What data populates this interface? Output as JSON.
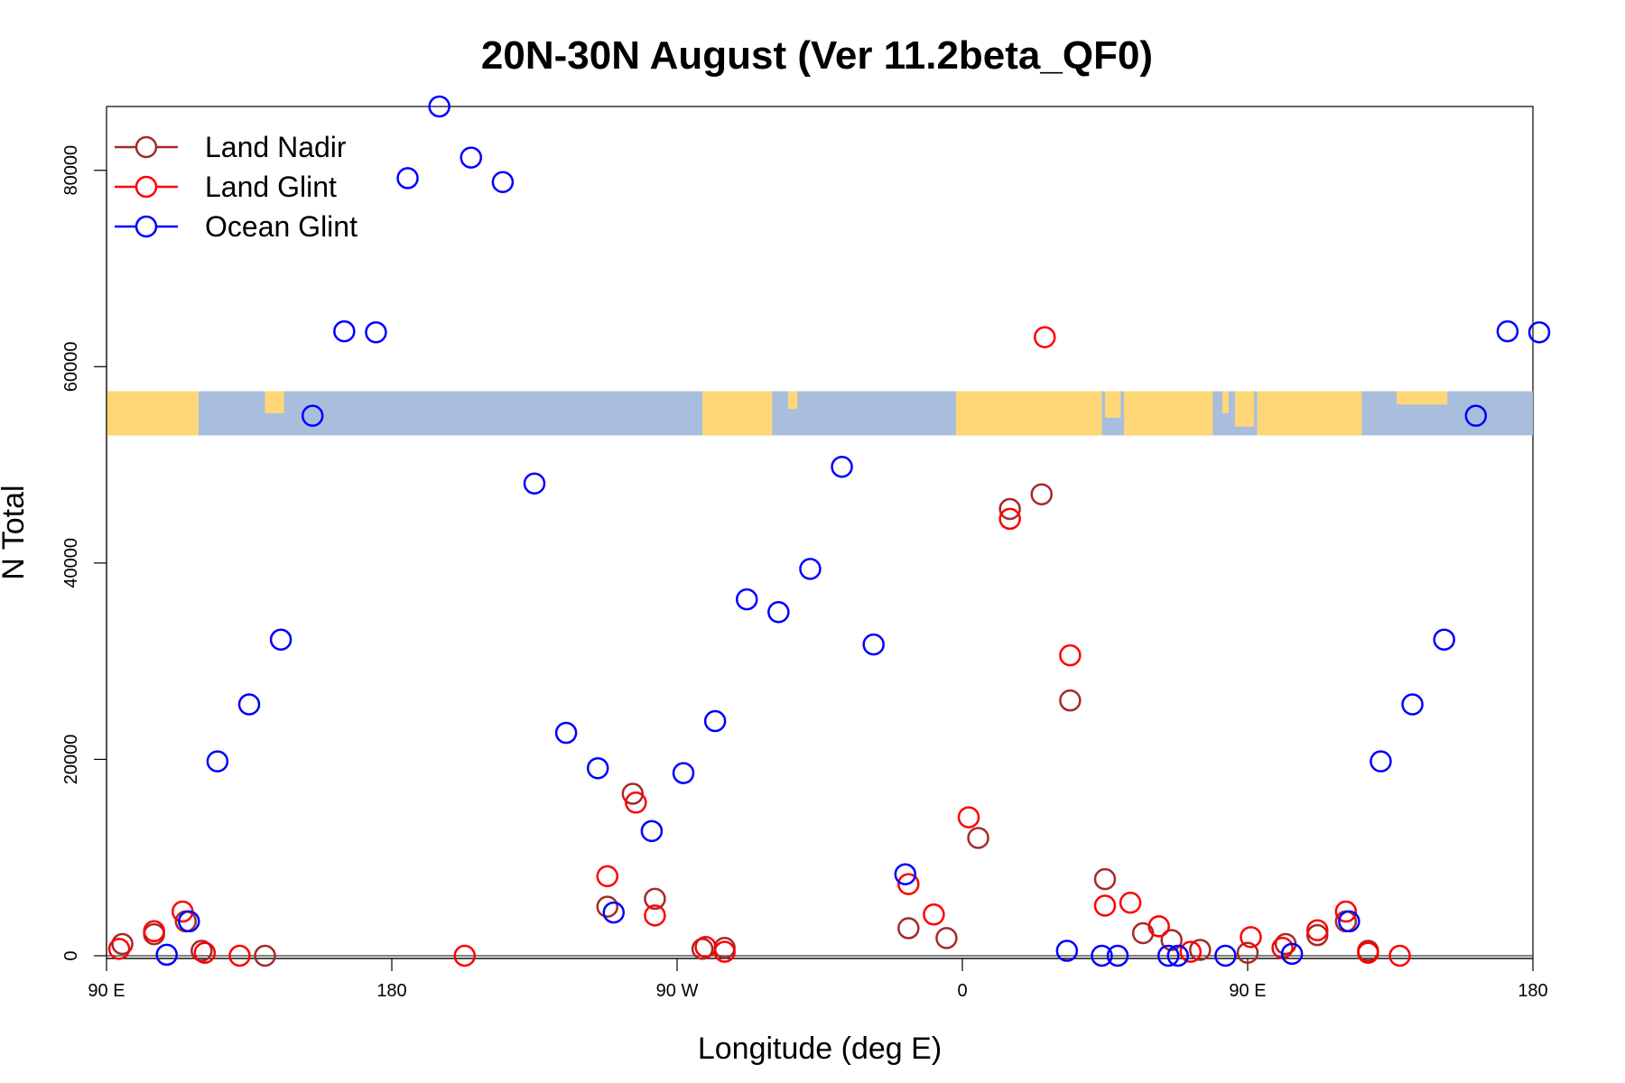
{
  "chart_data": {
    "type": "scatter",
    "title": "20N-30N August (Ver 11.2beta_QF0)",
    "xlabel": "Longitude (deg E)",
    "ylabel": "N Total",
    "xlim": [
      90,
      540
    ],
    "ylim": [
      0,
      86500
    ],
    "x_ticks": [
      {
        "value": 90,
        "label": "90 E"
      },
      {
        "value": 180,
        "label": "180"
      },
      {
        "value": 270,
        "label": "90 W"
      },
      {
        "value": 360,
        "label": "0"
      },
      {
        "value": 450,
        "label": "90 E"
      },
      {
        "value": 540,
        "label": "180"
      }
    ],
    "y_ticks": [
      {
        "value": 0,
        "label": "0"
      },
      {
        "value": 20000,
        "label": "20000"
      },
      {
        "value": 40000,
        "label": "40000"
      },
      {
        "value": 60000,
        "label": "60000"
      },
      {
        "value": 80000,
        "label": "80000"
      }
    ],
    "legend_position": "top-left",
    "map_strip": {
      "y_range": [
        53000,
        57500
      ],
      "ocean_color": "#A9BEDC",
      "land_color": "#FFD778"
    },
    "series": [
      {
        "name": "Land Nadir",
        "color": "#A52A2A",
        "points": [
          [
            95,
            1200
          ],
          [
            105,
            2200
          ],
          [
            115,
            3500
          ],
          [
            120,
            500
          ],
          [
            140,
            0
          ],
          [
            248,
            5000
          ],
          [
            256,
            16500
          ],
          [
            263,
            5800
          ],
          [
            278,
            700
          ],
          [
            285,
            800
          ],
          [
            343,
            2800
          ],
          [
            355,
            1800
          ],
          [
            365,
            12000
          ],
          [
            375,
            45500
          ],
          [
            385,
            47000
          ],
          [
            394,
            26000
          ],
          [
            405,
            7800
          ],
          [
            417,
            2300
          ],
          [
            426,
            1600
          ],
          [
            435,
            600
          ],
          [
            450,
            300
          ],
          [
            462,
            1200
          ],
          [
            472,
            2100
          ],
          [
            481,
            3500
          ],
          [
            488,
            500
          ]
        ]
      },
      {
        "name": "Land Glint",
        "color": "#FF0000",
        "points": [
          [
            94,
            700
          ],
          [
            105,
            2500
          ],
          [
            114,
            4500
          ],
          [
            121,
            300
          ],
          [
            132,
            0
          ],
          [
            203,
            0
          ],
          [
            248,
            8100
          ],
          [
            257,
            15600
          ],
          [
            263,
            4100
          ],
          [
            279,
            900
          ],
          [
            285,
            400
          ],
          [
            343,
            7300
          ],
          [
            351,
            4200
          ],
          [
            362,
            14100
          ],
          [
            375,
            44500
          ],
          [
            386,
            63000
          ],
          [
            394,
            30600
          ],
          [
            405,
            5100
          ],
          [
            413,
            5400
          ],
          [
            422,
            3000
          ],
          [
            432,
            400
          ],
          [
            451,
            1900
          ],
          [
            461,
            800
          ],
          [
            472,
            2600
          ],
          [
            481,
            4500
          ],
          [
            488,
            300
          ],
          [
            498,
            0
          ]
        ]
      },
      {
        "name": "Ocean Glint",
        "color": "#0000FF",
        "points": [
          [
            109,
            100
          ],
          [
            116,
            3500
          ],
          [
            125,
            19800
          ],
          [
            135,
            25600
          ],
          [
            145,
            32200
          ],
          [
            155,
            55000
          ],
          [
            165,
            63600
          ],
          [
            175,
            63500
          ],
          [
            185,
            79200
          ],
          [
            195,
            86500
          ],
          [
            205,
            81300
          ],
          [
            215,
            78800
          ],
          [
            225,
            48100
          ],
          [
            235,
            22700
          ],
          [
            245,
            19100
          ],
          [
            250,
            4400
          ],
          [
            262,
            12700
          ],
          [
            272,
            18600
          ],
          [
            282,
            23900
          ],
          [
            292,
            36300
          ],
          [
            302,
            35000
          ],
          [
            312,
            39400
          ],
          [
            322,
            49800
          ],
          [
            332,
            31700
          ],
          [
            342,
            8300
          ],
          [
            393,
            500
          ],
          [
            404,
            0
          ],
          [
            409,
            0
          ],
          [
            425,
            0
          ],
          [
            428,
            0
          ],
          [
            443,
            0
          ],
          [
            464,
            200
          ],
          [
            482,
            3500
          ],
          [
            492,
            19800
          ],
          [
            502,
            25600
          ],
          [
            512,
            32200
          ],
          [
            522,
            55000
          ],
          [
            532,
            63600
          ],
          [
            542,
            63500
          ]
        ]
      }
    ]
  }
}
